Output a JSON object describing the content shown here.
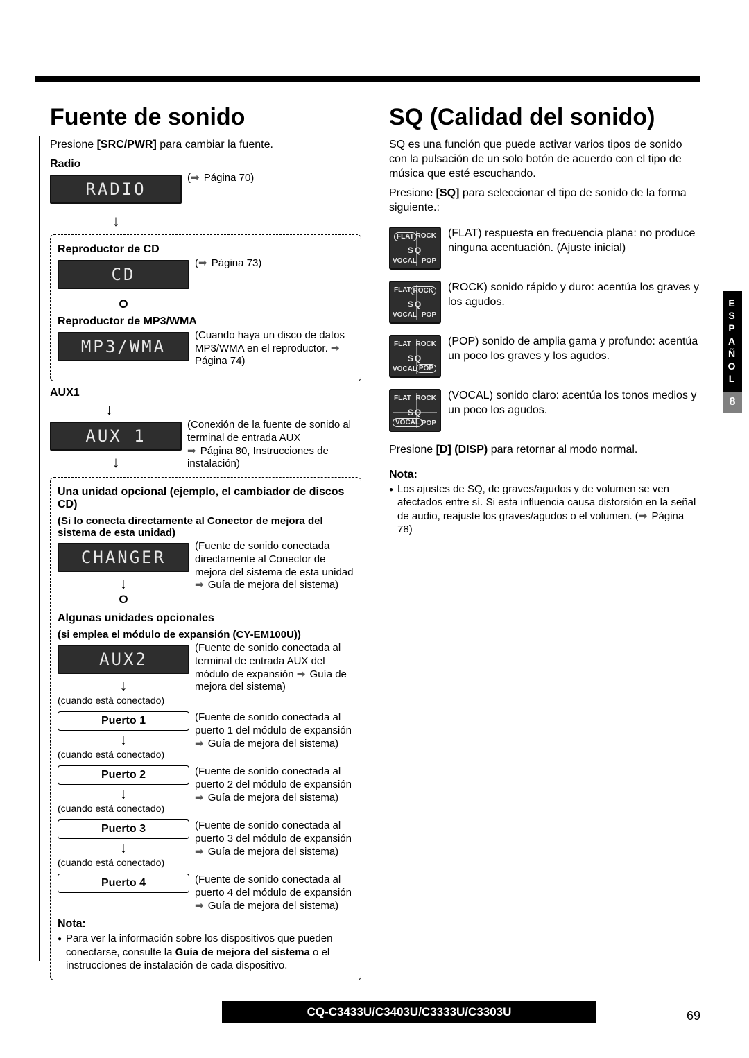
{
  "page": {
    "model_footer": "CQ-C3433U/C3403U/C3333U/C3303U",
    "page_number": "69",
    "sidebar_lang": "ESPAÑOL",
    "sidebar_section": "8"
  },
  "left": {
    "title": "Fuente de sonido",
    "intro_prefix": "Presione ",
    "intro_key": "[SRC/PWR]",
    "intro_suffix": " para cambiar la fuente.",
    "radio_label": "Radio",
    "radio_display": "RADIO",
    "radio_ref": "Página 70)",
    "cd_label": "Reproductor de CD",
    "cd_display": "CD",
    "cd_ref": "Página 73)",
    "o_label": "O",
    "mp3_label": "Reproductor de MP3/WMA",
    "mp3_display": "MP3/WMA",
    "mp3_desc_line1": "(Cuando haya un disco de datos MP3/WMA en el reproductor. ",
    "mp3_desc_ref": "Página 74)",
    "aux1_label": "AUX1",
    "aux1_display": "AUX 1",
    "aux1_desc_line1": "(Conexión de la fuente de sonido al terminal de entrada AUX",
    "aux1_desc_ref": " Página 80, Instrucciones de instalación)",
    "opt_title": "Una unidad opcional (ejemplo, el cambiador de discos CD)",
    "opt_sub": "(Si lo conecta directamente al Conector de mejora del sistema de esta unidad)",
    "changer_display": "CHANGER",
    "changer_desc": "(Fuente de sonido conectada directamente al Conector de mejora del sistema de esta unidad ",
    "changer_ref": "Guía de mejora del sistema)",
    "opt2_title": "Algunas unidades opcionales",
    "opt2_sub": "(si emplea el módulo de expansión (CY-EM100U))",
    "aux2_display": "AUX2",
    "aux2_desc": "(Fuente de sonido conectada al terminal de entrada AUX del módulo de expansión ",
    "aux2_ref": "Guía de mejora del sistema)",
    "conn_note": "(cuando está conectado)",
    "ports": [
      {
        "label": "Puerto 1",
        "desc": "(Fuente de sonido conectada al puerto 1 del módulo de expansión ",
        "ref": "Guía de mejora del sistema)"
      },
      {
        "label": "Puerto 2",
        "desc": "(Fuente de sonido conectada al puerto 2 del módulo de expansión ",
        "ref": "Guía de mejora del sistema)"
      },
      {
        "label": "Puerto 3",
        "desc": "(Fuente de sonido conectada al puerto 3 del módulo de expansión ",
        "ref": "Guía de mejora del sistema)"
      },
      {
        "label": "Puerto 4",
        "desc": "(Fuente de sonido conectada al puerto 4 del módulo de expansión ",
        "ref": "Guía de mejora del sistema)"
      }
    ],
    "note_label": "Nota:",
    "note_text_prefix": "Para ver la información sobre los dispositivos que pueden conectarse, consulte la ",
    "note_text_bold": "Guía de mejora del sistema",
    "note_text_suffix": " o el instrucciones de instalación de cada dispositivo."
  },
  "right": {
    "title": "SQ (Calidad del sonido)",
    "intro": "SQ es una función que puede activar varios tipos de sonido con la pulsación de un solo botón de acuerdo con el tipo de música que esté escuchando.",
    "press_prefix": "Presione ",
    "press_key": "[SQ]",
    "press_suffix": " para seleccionar el tipo de sonido de la forma siguiente.:",
    "icon_labels": {
      "flat": "FLAT",
      "rock": "ROCK",
      "vocal": "VOCAL",
      "pop": "POP",
      "sq": "SQ"
    },
    "modes": [
      {
        "name": "FLAT",
        "desc": "(FLAT) respuesta en frecuencia plana: no produce ninguna acentuación. (Ajuste inicial)"
      },
      {
        "name": "ROCK",
        "desc": "(ROCK) sonido rápido y duro: acentúa los graves y los agudos."
      },
      {
        "name": "POP",
        "desc": "(POP) sonido de amplia gama y profundo: acentúa un poco los graves y los agudos."
      },
      {
        "name": "VOCAL",
        "desc": "(VOCAL) sonido claro: acentúa los tonos medios y un poco los agudos."
      }
    ],
    "disp_prefix": "Presione ",
    "disp_key": "[D] (DISP)",
    "disp_suffix": " para retornar al modo normal.",
    "note_label": "Nota:",
    "note_text": "Los ajustes de SQ, de graves/agudos y de volumen se ven afectados entre sí. Si esta influencia causa distorsión en la señal de audio, reajuste los graves/agudos o el volumen. (",
    "note_ref": "Página 78)"
  },
  "colors": {
    "display_bg": "#2e2e2e",
    "text": "#000000",
    "accent": "#555555"
  }
}
